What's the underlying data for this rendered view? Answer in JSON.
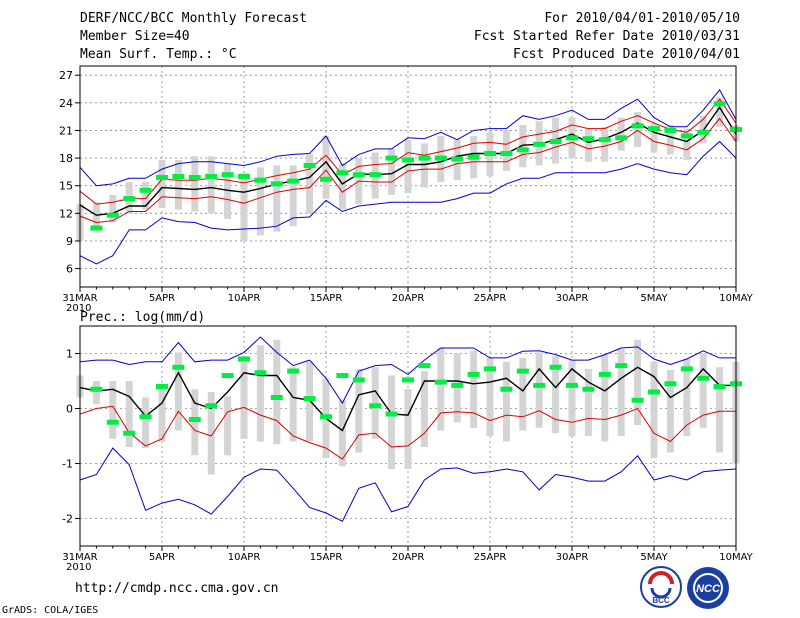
{
  "header": {
    "title": "DERF/NCC/BCC Monthly Forecast",
    "member_size": "Member Size=40",
    "variable": "Mean Surf. Temp.: °C",
    "period": "For 2010/04/01-2010/05/10",
    "refer_date": "Fcst Started Refer Date 2010/03/31",
    "produced_date": "Fcst Produced Date 2010/04/01"
  },
  "footer": {
    "url": "http://cmdp.ncc.cma.gov.cn",
    "credit": "GrADS: COLA/IGES",
    "logo_bcc": "BCC",
    "logo_ncc": "NCC"
  },
  "colors": {
    "envelope": "#0000cc",
    "spread": "#dd0000",
    "mean": "#000000",
    "observed": "#00ee44",
    "boxes": "#d4d4d4",
    "grid": "#888888"
  },
  "chart_data": [
    {
      "type": "line",
      "title": "Mean Surf. Temp.: °C",
      "days": 40,
      "x_tick_labels": [
        "31MAR",
        "5APR",
        "10APR",
        "15APR",
        "20APR",
        "25APR",
        "30APR",
        "5MAY",
        "10MAY"
      ],
      "x_tick_days": [
        0,
        5,
        10,
        15,
        20,
        25,
        30,
        35,
        40
      ],
      "x_year_label": "2010",
      "y_ticks": [
        6,
        9,
        12,
        15,
        18,
        21,
        24,
        27
      ],
      "ylim": [
        4,
        28
      ],
      "series": [
        {
          "name": "max",
          "values": [
            17,
            15,
            15.2,
            15.8,
            15.8,
            16.8,
            17.4,
            17.6,
            17.6,
            17.4,
            17.2,
            17.6,
            18.2,
            18.4,
            18.5,
            20.4,
            17.2,
            18.4,
            19,
            19,
            20.2,
            20.1,
            20.8,
            20,
            21,
            21.2,
            21.2,
            22.6,
            22.2,
            22.6,
            23.2,
            22.2,
            22.2,
            23.4,
            24.4,
            22.4,
            21.4,
            21.4,
            23.2,
            25.4,
            22.2
          ]
        },
        {
          "name": "upper",
          "values": [
            14.4,
            13,
            13.2,
            13.6,
            13.6,
            15.7,
            15.6,
            15.6,
            15.8,
            15.6,
            15.3,
            15.7,
            16.1,
            16.4,
            16.8,
            18.3,
            16.2,
            17.1,
            17.3,
            17.4,
            18.6,
            18.3,
            18.7,
            19.1,
            19.6,
            19.7,
            19.5,
            20.3,
            20.6,
            20.9,
            21.6,
            21.2,
            21.2,
            22,
            22.6,
            21.8,
            21.1,
            20.8,
            22.2,
            24.4,
            21.8
          ]
        },
        {
          "name": "mean",
          "values": [
            12.9,
            11.8,
            12,
            12.8,
            12.8,
            14.8,
            14.7,
            14.6,
            14.8,
            14.5,
            14.3,
            14.7,
            15.2,
            15.5,
            15.9,
            17.6,
            15.2,
            16.3,
            16.2,
            16.3,
            17.3,
            17.3,
            17.6,
            18.2,
            18.5,
            18.5,
            18.5,
            19.4,
            19.5,
            20,
            20.6,
            19.7,
            20.1,
            20.8,
            21.8,
            20.8,
            20.3,
            19.8,
            21,
            23.5,
            20.6
          ]
        },
        {
          "name": "lower",
          "values": [
            11.7,
            11,
            11.2,
            12.2,
            12.2,
            13.8,
            13.7,
            13.6,
            13.8,
            13.5,
            13.1,
            13.7,
            14.3,
            14.6,
            14.8,
            16.7,
            14.3,
            15.5,
            15.4,
            15.4,
            16.6,
            16.8,
            16.8,
            17.4,
            17.6,
            17.6,
            17.6,
            18.4,
            18.6,
            19.2,
            19.7,
            19,
            19.3,
            19.8,
            21,
            19.8,
            19.4,
            18.9,
            20.1,
            22.3,
            19.8
          ]
        },
        {
          "name": "min",
          "values": [
            7.4,
            6.5,
            7.4,
            10.2,
            10.2,
            11.5,
            11.1,
            11,
            10.4,
            10.2,
            10.3,
            10.4,
            10.6,
            11.5,
            11.6,
            13.4,
            12.2,
            12.8,
            13,
            13.2,
            13.2,
            13.2,
            13.2,
            13.6,
            14.2,
            14.2,
            15.2,
            15.8,
            15.8,
            16.4,
            16.4,
            16.4,
            16.4,
            16.8,
            17.4,
            16.8,
            16.4,
            16.2,
            18.2,
            19.8,
            18
          ]
        }
      ],
      "box_ranges": [
        [
          9,
          13
        ],
        [
          10.6,
          13.2
        ],
        [
          11,
          14
        ],
        [
          12,
          15.4
        ],
        [
          12.4,
          15.4
        ],
        [
          12.6,
          17.8
        ],
        [
          12.4,
          17.8
        ],
        [
          12.2,
          18.2
        ],
        [
          12,
          18.2
        ],
        [
          11.4,
          17.4
        ],
        [
          9,
          16.4
        ],
        [
          9.6,
          17
        ],
        [
          10,
          17.2
        ],
        [
          10.6,
          17.2
        ],
        [
          12,
          18.4
        ],
        [
          13.6,
          20.4
        ],
        [
          12.4,
          17.4
        ],
        [
          13,
          18
        ],
        [
          13.6,
          18.6
        ],
        [
          14,
          19
        ],
        [
          14.2,
          20
        ],
        [
          14.8,
          19.6
        ],
        [
          15.4,
          20.4
        ],
        [
          15.6,
          20
        ],
        [
          15.8,
          20.4
        ],
        [
          16,
          20.8
        ],
        [
          16.6,
          21
        ],
        [
          17,
          21.6
        ],
        [
          17.2,
          22
        ],
        [
          17.4,
          22.4
        ],
        [
          18,
          22.4
        ],
        [
          17.6,
          21.2
        ],
        [
          17.6,
          21.4
        ],
        [
          18.8,
          22.4
        ],
        [
          19.2,
          23
        ],
        [
          18.6,
          21.8
        ],
        [
          18.4,
          21.6
        ],
        [
          17.8,
          21.2
        ],
        [
          19.6,
          22.6
        ],
        [
          21.4,
          24.6
        ],
        [
          19.8,
          21.6
        ]
      ],
      "observed": [
        [
          1,
          10.4
        ],
        [
          2,
          11.8
        ],
        [
          3,
          13.6
        ],
        [
          4,
          14.5
        ],
        [
          5,
          15.9
        ],
        [
          6,
          16
        ],
        [
          7,
          15.9
        ],
        [
          8,
          16
        ],
        [
          9,
          16.2
        ],
        [
          10,
          16
        ],
        [
          11,
          15.6
        ],
        [
          12,
          15.2
        ],
        [
          13,
          15.5
        ],
        [
          14,
          17.2
        ],
        [
          15,
          15.7
        ],
        [
          16,
          16.4
        ],
        [
          17,
          16.2
        ],
        [
          18,
          16.2
        ],
        [
          19,
          18
        ],
        [
          20,
          17.8
        ],
        [
          21,
          18
        ],
        [
          22,
          18
        ],
        [
          23,
          17.9
        ],
        [
          24,
          18.1
        ],
        [
          25,
          18.5
        ],
        [
          26,
          18.5
        ],
        [
          27,
          18.9
        ],
        [
          28,
          19.5
        ],
        [
          29,
          19.8
        ],
        [
          30,
          20.2
        ],
        [
          31,
          20.1
        ],
        [
          32,
          20
        ],
        [
          33,
          20.2
        ],
        [
          34,
          21.5
        ],
        [
          35,
          21.2
        ],
        [
          36,
          21
        ],
        [
          37,
          20.4
        ],
        [
          38,
          20.8
        ],
        [
          39,
          23.9
        ],
        [
          40,
          21.1
        ]
      ]
    },
    {
      "type": "line",
      "title": "Prec.: log(mm/d)",
      "days": 40,
      "x_tick_labels": [
        "31MAR",
        "5APR",
        "10APR",
        "15APR",
        "20APR",
        "25APR",
        "30APR",
        "5MAY",
        "10MAY"
      ],
      "x_tick_days": [
        0,
        5,
        10,
        15,
        20,
        25,
        30,
        35,
        40
      ],
      "x_year_label": "2010",
      "y_ticks": [
        -2,
        -1,
        0,
        1
      ],
      "ylim": [
        -2.5,
        1.5
      ],
      "series": [
        {
          "name": "max",
          "values": [
            0.85,
            0.88,
            0.88,
            0.8,
            0.85,
            0.85,
            1.2,
            0.85,
            0.88,
            0.88,
            1.02,
            1.3,
            1.02,
            0.78,
            0.88,
            0.55,
            0.1,
            0.68,
            0.78,
            0.8,
            0.62,
            0.88,
            1.1,
            1.1,
            1.1,
            0.92,
            0.92,
            1.04,
            1.05,
            0.98,
            0.88,
            0.88,
            0.98,
            1.1,
            1.12,
            0.9,
            0.8,
            0.9,
            1.05,
            0.92,
            0.92
          ]
        },
        {
          "name": "mean",
          "values": [
            0.38,
            0.32,
            0.35,
            0.22,
            -0.14,
            0.1,
            0.65,
            0.1,
            0,
            0.3,
            0.65,
            0.6,
            0.6,
            0.2,
            0.15,
            -0.18,
            -0.4,
            0.25,
            0.32,
            -0.1,
            -0.12,
            0.5,
            0.5,
            0.5,
            0.45,
            0.48,
            0.55,
            0.32,
            0.72,
            0.38,
            0.72,
            0.48,
            0.32,
            0.55,
            0.75,
            0.58,
            0.2,
            0.38,
            0.72,
            0.42,
            0.42
          ]
        },
        {
          "name": "lower",
          "values": [
            -0.1,
            0,
            0.04,
            -0.44,
            -0.68,
            -0.55,
            -0.05,
            -0.4,
            -0.5,
            -0.06,
            0.02,
            -0.12,
            -0.22,
            -0.5,
            -0.62,
            -0.72,
            -0.92,
            -0.48,
            -0.45,
            -0.7,
            -0.68,
            -0.45,
            -0.08,
            -0.06,
            -0.08,
            -0.22,
            -0.12,
            -0.15,
            -0.04,
            -0.2,
            -0.25,
            -0.18,
            -0.2,
            -0.12,
            0,
            -0.45,
            -0.6,
            -0.3,
            -0.12,
            -0.05,
            -0.05
          ]
        },
        {
          "name": "min",
          "values": [
            -1.3,
            -1.2,
            -0.72,
            -1.02,
            -1.85,
            -1.72,
            -1.65,
            -1.75,
            -1.92,
            -1.6,
            -1.25,
            -1.1,
            -1.12,
            -1.45,
            -1.8,
            -1.9,
            -2.05,
            -1.45,
            -1.35,
            -1.88,
            -1.78,
            -1.3,
            -1.1,
            -1.08,
            -1.18,
            -1.15,
            -1.1,
            -1.15,
            -1.48,
            -1.2,
            -1.25,
            -1.32,
            -1.32,
            -1.15,
            -0.86,
            -1.3,
            -1.22,
            -1.3,
            -1.15,
            -1.12,
            -1.1
          ]
        }
      ],
      "box_ranges": [
        [
          0.2,
          0.6
        ],
        [
          0.08,
          0.5
        ],
        [
          -0.55,
          0.5
        ],
        [
          -0.7,
          0.5
        ],
        [
          -0.72,
          0.2
        ],
        [
          -0.6,
          0.4
        ],
        [
          -0.4,
          1.02
        ],
        [
          -0.85,
          0.35
        ],
        [
          -1.2,
          0.3
        ],
        [
          -0.85,
          0.22
        ],
        [
          -0.55,
          0.95
        ],
        [
          -0.6,
          1.15
        ],
        [
          -0.65,
          1.25
        ],
        [
          -0.6,
          0.75
        ],
        [
          -0.6,
          0.85
        ],
        [
          -0.9,
          0.55
        ],
        [
          -1.05,
          0.15
        ],
        [
          -0.8,
          0.72
        ],
        [
          -0.55,
          0.75
        ],
        [
          -1.1,
          0.6
        ],
        [
          -1.1,
          0.35
        ],
        [
          -0.7,
          0.68
        ],
        [
          -0.4,
          1.1
        ],
        [
          -0.25,
          1.0
        ],
        [
          -0.35,
          1.05
        ],
        [
          -0.5,
          0.92
        ],
        [
          -0.6,
          0.85
        ],
        [
          -0.4,
          0.92
        ],
        [
          -0.35,
          1.02
        ],
        [
          -0.45,
          0.95
        ],
        [
          -0.5,
          0.88
        ],
        [
          -0.5,
          0.72
        ],
        [
          -0.6,
          0.98
        ],
        [
          -0.5,
          1.08
        ],
        [
          -0.3,
          1.25
        ],
        [
          -0.9,
          0.85
        ],
        [
          -0.8,
          0.7
        ],
        [
          -0.5,
          0.9
        ],
        [
          -0.35,
          1.0
        ],
        [
          -0.8,
          0.75
        ],
        [
          -1.0,
          0.85
        ]
      ],
      "observed": [
        [
          1,
          0.35
        ],
        [
          2,
          -0.25
        ],
        [
          3,
          -0.45
        ],
        [
          4,
          -0.15
        ],
        [
          5,
          0.4
        ],
        [
          6,
          0.75
        ],
        [
          7,
          -0.2
        ],
        [
          8,
          0.05
        ],
        [
          9,
          0.6
        ],
        [
          10,
          0.9
        ],
        [
          11,
          0.65
        ],
        [
          12,
          0.2
        ],
        [
          13,
          0.68
        ],
        [
          14,
          0.18
        ],
        [
          15,
          -0.15
        ],
        [
          16,
          0.6
        ],
        [
          17,
          0.52
        ],
        [
          18,
          0.05
        ],
        [
          19,
          -0.1
        ],
        [
          20,
          0.52
        ],
        [
          21,
          0.78
        ],
        [
          22,
          0.48
        ],
        [
          23,
          0.42
        ],
        [
          24,
          0.62
        ],
        [
          25,
          0.72
        ],
        [
          26,
          0.35
        ],
        [
          27,
          0.68
        ],
        [
          28,
          0.42
        ],
        [
          29,
          0.75
        ],
        [
          30,
          0.42
        ],
        [
          31,
          0.35
        ],
        [
          32,
          0.62
        ],
        [
          33,
          0.78
        ],
        [
          34,
          0.15
        ],
        [
          35,
          0.3
        ],
        [
          36,
          0.45
        ],
        [
          37,
          0.72
        ],
        [
          38,
          0.55
        ],
        [
          39,
          0.4
        ],
        [
          40,
          0.45
        ]
      ]
    }
  ]
}
